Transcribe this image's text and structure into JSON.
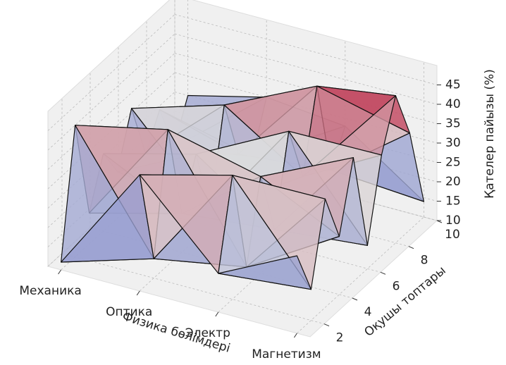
{
  "chart_data": {
    "type": "surface3d",
    "xlabel": "Физика бөлімдері",
    "ylabel": "Оқушы топтары",
    "zlabel": "Қателер пайызы (%)",
    "categories": [
      "Механика",
      "Оптика",
      "Электр",
      "Магнетизм"
    ],
    "y": [
      1,
      2,
      3,
      4,
      5,
      6,
      7,
      8,
      9,
      10
    ],
    "ylim": [
      1,
      10
    ],
    "yticks": [
      2,
      4,
      6,
      8,
      10
    ],
    "zlim": [
      10,
      50
    ],
    "zticks": [
      10,
      15,
      20,
      25,
      30,
      35,
      40,
      45
    ],
    "z": [
      [
        12,
        44,
        18,
        30,
        22,
        35,
        20,
        28,
        15,
        25
      ],
      [
        40,
        15,
        45,
        20,
        32,
        14,
        38,
        22,
        18,
        30
      ],
      [
        20,
        42,
        15,
        35,
        18,
        40,
        25,
        45,
        20,
        28
      ],
      [
        30,
        18,
        38,
        25,
        42,
        16,
        36,
        48,
        35,
        14
      ]
    ],
    "colormap": "coolwarm",
    "grid": true
  }
}
